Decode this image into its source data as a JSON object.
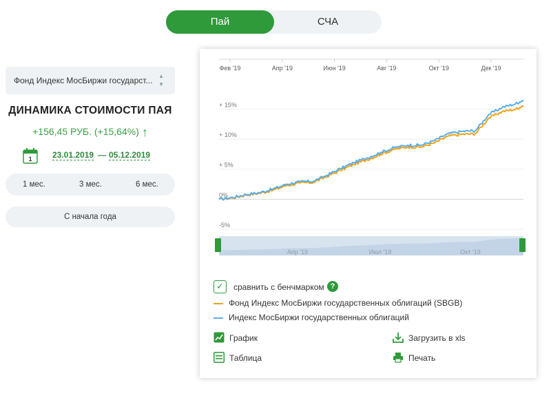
{
  "tabs": [
    {
      "label": "Пай",
      "active": true
    },
    {
      "label": "СЧА",
      "active": false
    }
  ],
  "fund_select": {
    "value": "Фонд Индекс МосБиржи государст..."
  },
  "left_panel": {
    "title": "ДИНАМИКА СТОИМОСТИ ПАЯ",
    "change": "+156,45 РУБ. (+15,64%)",
    "date_from": "23.01.2019",
    "date_separator": "—",
    "date_to": "05.12.2019",
    "calendar_day": "1",
    "periods": [
      "1 мес.",
      "3 мес.",
      "6 мес."
    ],
    "ytd": "С начала года"
  },
  "colors": {
    "accent": "#2e9a3a",
    "fund": "#f4a21a",
    "index": "#5aaee8"
  },
  "chart_data": {
    "type": "line",
    "top_axis_labels": [
      "Фев '19",
      "Апр '19",
      "Июн '19",
      "Авг '19",
      "Окт '19",
      "Дек '19"
    ],
    "y_tick_labels": [
      "+ 15%",
      "+ 10%",
      "+ 5%",
      "0%",
      "-5%"
    ],
    "y_ticks": [
      15,
      10,
      5,
      0,
      -5
    ],
    "ylim": [
      -5,
      17
    ],
    "navigator_labels": [
      "Апр '19",
      "Июл '19",
      "Окт '19"
    ],
    "x_dates": [
      "2019-01-23",
      "2019-02-06",
      "2019-02-20",
      "2019-03-06",
      "2019-03-20",
      "2019-04-03",
      "2019-04-17",
      "2019-05-01",
      "2019-05-15",
      "2019-05-29",
      "2019-06-12",
      "2019-06-26",
      "2019-07-10",
      "2019-07-24",
      "2019-08-07",
      "2019-08-21",
      "2019-09-04",
      "2019-09-18",
      "2019-10-02",
      "2019-10-16",
      "2019-10-30",
      "2019-11-13",
      "2019-11-27",
      "2019-12-05"
    ],
    "series": [
      {
        "name": "Фонд Индекс МосБиржи государственных облигаций (SBGB)",
        "color": "#f4a21a",
        "values": [
          0,
          0.2,
          0.7,
          1.0,
          1.5,
          2.3,
          2.7,
          2.8,
          3.8,
          4.8,
          5.8,
          6.6,
          7.5,
          8.3,
          8.7,
          8.7,
          9.4,
          10.5,
          10.8,
          10.9,
          13.5,
          14.6,
          15.0,
          15.6
        ]
      },
      {
        "name": "Индекс МосБиржи государственных облигаций",
        "color": "#5aaee8",
        "values": [
          0,
          0.3,
          0.8,
          1.1,
          1.7,
          2.5,
          2.9,
          3.0,
          4.0,
          5.1,
          6.1,
          6.9,
          7.8,
          8.6,
          9.0,
          9.0,
          9.8,
          10.9,
          11.3,
          11.4,
          14.1,
          15.3,
          15.9,
          16.5
        ]
      }
    ]
  },
  "benchmark": {
    "label": "сравнить с бенчмарком",
    "checked": true,
    "help": "?"
  },
  "legend": [
    {
      "label": "Фонд Индекс МосБиржи государственных облигаций (SBGB)",
      "color": "#f4a21a"
    },
    {
      "label": "Индекс МосБиржи государственных облигаций",
      "color": "#5aaee8"
    }
  ],
  "actions": {
    "chart": "График",
    "table": "Таблица",
    "download": "Загрузить в xls",
    "print": "Печать"
  }
}
